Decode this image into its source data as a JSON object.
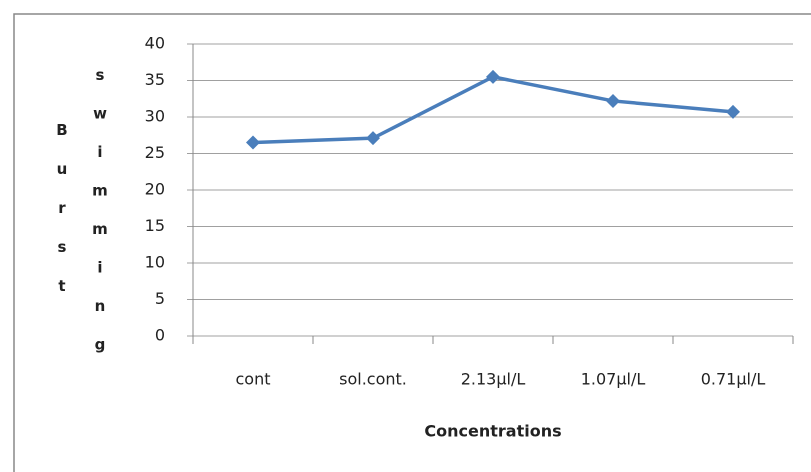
{
  "chart_data": {
    "type": "line",
    "ylabel": [
      "Burst",
      "swimming"
    ],
    "xlabel": "Concentrations",
    "categories": [
      "cont",
      "sol.cont.",
      "2.13µl/L",
      "1.07µl/L",
      "0.71µl/L"
    ],
    "series": [
      {
        "color": "#4a7ebb",
        "values": [
          26.5,
          27.1,
          35.5,
          32.2,
          30.7
        ]
      }
    ],
    "ylim": [
      0,
      40
    ],
    "yticks": [
      0,
      5,
      10,
      15,
      20,
      25,
      30,
      35,
      40
    ],
    "grid": true
  }
}
